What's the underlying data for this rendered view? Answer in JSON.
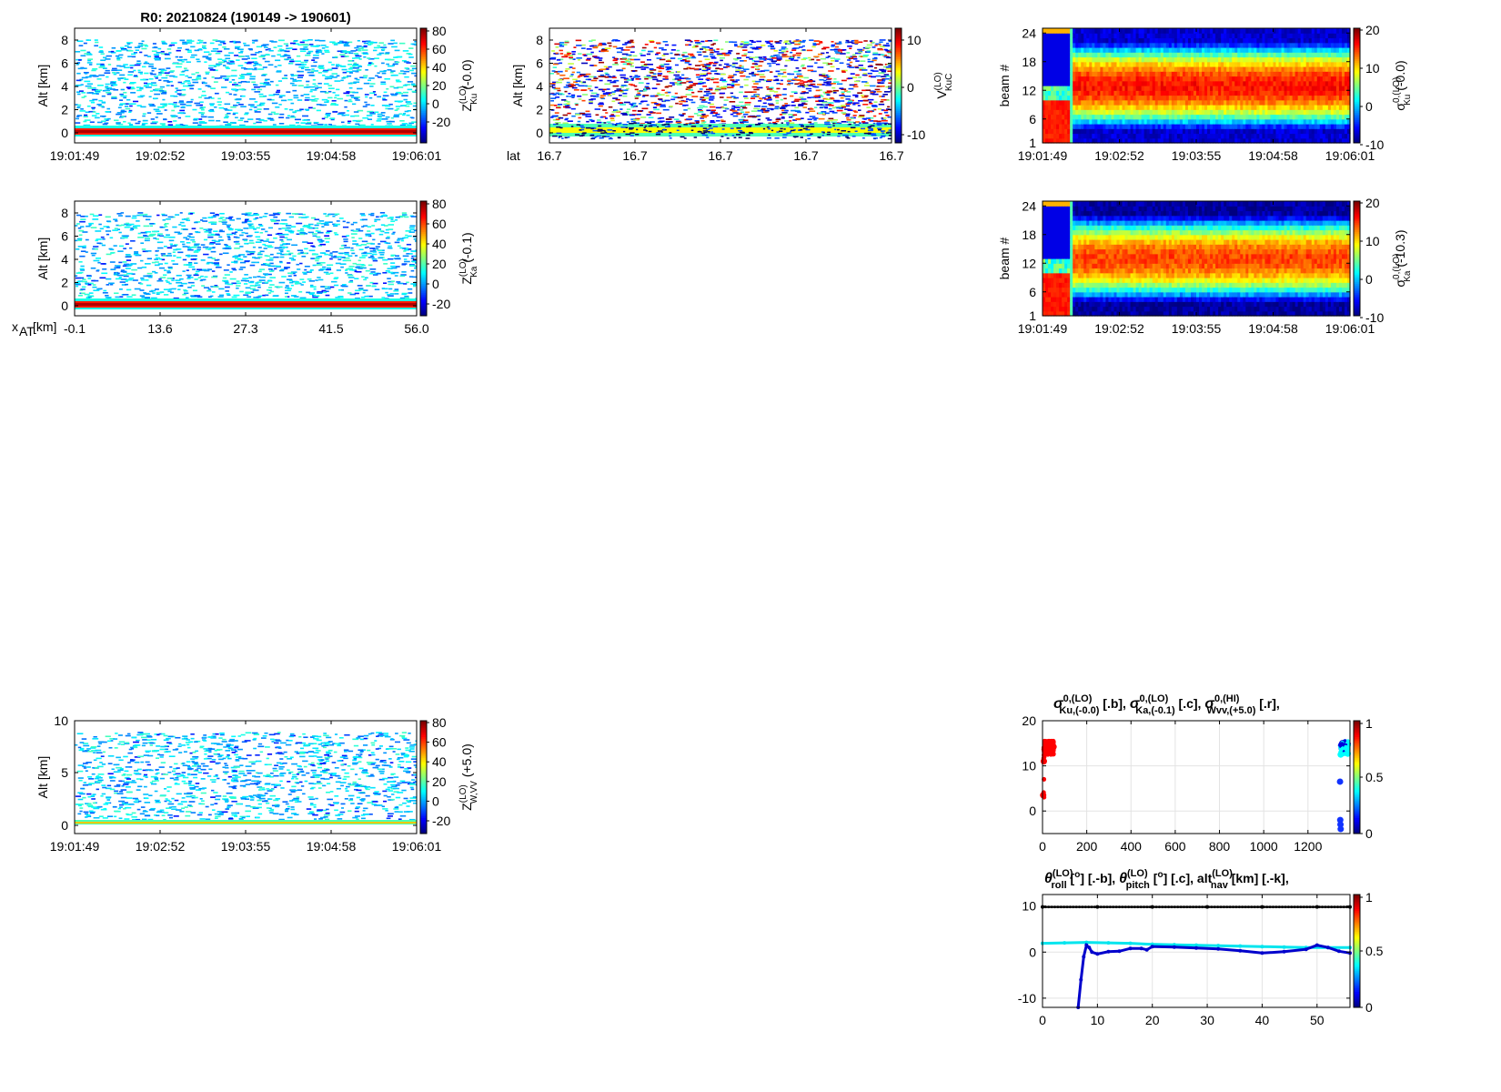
{
  "figure_title": "R0:  20210824 (190149 -> 190601)",
  "chart_data": [
    {
      "id": "zku",
      "type": "heatmap",
      "title": "R0:  20210824 (190149 -> 190601)",
      "ylabel": "Alt [km]",
      "xticks": [
        "19:01:49",
        "19:02:52",
        "19:03:55",
        "19:04:58",
        "19:06:01"
      ],
      "yticks": [
        "0",
        "2",
        "4",
        "6",
        "8"
      ],
      "ylim": [
        -0.8,
        9
      ],
      "colorbar": {
        "label": "Z_Ku^(LO) (-0.0)",
        "ticks": [
          "80",
          "60",
          "40",
          "20",
          "0",
          "-20"
        ],
        "range": [
          -30,
          80
        ],
        "palette": "jet"
      }
    },
    {
      "id": "vku",
      "type": "heatmap",
      "ylabel": "Alt [km]",
      "xlabel": "lat",
      "xticks": [
        "16.7",
        "16.7",
        "16.7",
        "16.7",
        "16.7"
      ],
      "yticks": [
        "0",
        "2",
        "4",
        "6",
        "8"
      ],
      "ylim": [
        -0.8,
        9
      ],
      "colorbar": {
        "label": "V_KuC^(LO)",
        "ticks": [
          "10",
          "0",
          "-10"
        ],
        "range": [
          -12,
          12
        ],
        "palette": "jet"
      }
    },
    {
      "id": "sigku",
      "type": "heatmap",
      "ylabel": "beam #",
      "xticks": [
        "19:01:49",
        "19:02:52",
        "19:03:55",
        "19:04:58",
        "19:06:01"
      ],
      "yticks": [
        "1",
        "6",
        "12",
        "18",
        "24"
      ],
      "ylim": [
        1,
        25
      ],
      "colorbar": {
        "label": "σ0_Ku^(LO) (-0.0)",
        "ticks": [
          "20",
          "10",
          "0",
          "-10"
        ],
        "range": [
          -10,
          20
        ],
        "palette": "jet"
      }
    },
    {
      "id": "zka",
      "type": "heatmap",
      "ylabel": "Alt [km]",
      "xlabel": "x_AT [km]",
      "xticks": [
        "-0.1",
        "13.6",
        "27.3",
        "41.5",
        "56.0"
      ],
      "yticks": [
        "0",
        "2",
        "4",
        "6",
        "8"
      ],
      "ylim": [
        -0.8,
        9
      ],
      "colorbar": {
        "label": "Z_Ka^(LO) (-0.1)",
        "ticks": [
          "80",
          "60",
          "40",
          "20",
          "0",
          "-20"
        ],
        "range": [
          -30,
          80
        ],
        "palette": "jet"
      }
    },
    {
      "id": "sigka",
      "type": "heatmap",
      "ylabel": "beam #",
      "xticks": [
        "19:01:49",
        "19:02:52",
        "19:03:55",
        "19:04:58",
        "19:06:01"
      ],
      "yticks": [
        "1",
        "6",
        "12",
        "18",
        "24"
      ],
      "ylim": [
        1,
        25
      ],
      "colorbar": {
        "label": "σ0_Ka^(LO) (-10.3)",
        "ticks": [
          "20",
          "10",
          "0",
          "-10"
        ],
        "range": [
          -10,
          20
        ],
        "palette": "jet"
      }
    },
    {
      "id": "zw",
      "type": "heatmap",
      "ylabel": "Alt [km]",
      "xticks": [
        "19:01:49",
        "19:02:52",
        "19:03:55",
        "19:04:58",
        "19:06:01"
      ],
      "yticks": [
        "0",
        "5",
        "10"
      ],
      "ylim": [
        -0.8,
        10.2
      ],
      "colorbar": {
        "label": "Z_W,VV^(LO) (+5.0)",
        "ticks": [
          "80",
          "60",
          "40",
          "20",
          "0",
          "-20"
        ],
        "range": [
          -30,
          80
        ],
        "palette": "jet"
      }
    },
    {
      "id": "sigline",
      "type": "scatter",
      "title": "σ0,(LO) Ku,(-0.0) [.b],  σ0,(LO) Ka,(-0.1) [.c],  σ0,(HI) Wvv,(+5.0) [.r],",
      "xticks": [
        "0",
        "200",
        "400",
        "600",
        "800",
        "1000",
        "1200"
      ],
      "xlim": [
        0,
        1390
      ],
      "yticks": [
        "0",
        "10",
        "20"
      ],
      "ylim": [
        -5,
        20
      ],
      "colorbar": {
        "ticks": [
          "1",
          "0.5",
          "0"
        ],
        "range": [
          0,
          1
        ]
      },
      "series": [
        {
          "name": "σ0 W,vv (red)",
          "color": "#ff0000",
          "x": [
            3,
            6,
            10,
            15,
            20,
            25,
            30,
            35,
            40,
            45,
            50
          ],
          "y": [
            3.5,
            11,
            14,
            14.5,
            14,
            13.5,
            15,
            14,
            14.5,
            13.8,
            14.2
          ]
        },
        {
          "name": "σ0 Ku (blue)",
          "color": "#0000dd",
          "x": [
            1350,
            1355,
            1360,
            1365,
            1370,
            1375,
            1380
          ],
          "y": [
            14.5,
            15,
            14.8,
            15,
            14.6,
            15,
            14.8
          ]
        },
        {
          "name": "σ0 Ka (cyan)",
          "color": "#00ffff",
          "x": [
            1348,
            1352,
            1358,
            1362,
            1368,
            1374,
            1380
          ],
          "y": [
            12.5,
            13,
            12.8,
            13.2,
            12.9,
            13,
            12.7
          ]
        },
        {
          "name": "outliers",
          "color": "#1133ff",
          "x": [
            1345,
            1346,
            1347,
            1348
          ],
          "y": [
            6.5,
            -2,
            -3,
            -4
          ]
        }
      ]
    },
    {
      "id": "attline",
      "type": "line",
      "title": "θ(LO) roll [o] [.-b],  θ(LO) pitch [o] [.c],  alt(LO) nav [km] [.-k],",
      "xticks": [
        "0",
        "10",
        "20",
        "30",
        "40",
        "50"
      ],
      "xlim": [
        0,
        56
      ],
      "yticks": [
        "-10",
        "0",
        "10"
      ],
      "ylim": [
        -12,
        12.5
      ],
      "colorbar": {
        "ticks": [
          "1",
          "0.5",
          "0"
        ],
        "range": [
          0,
          1
        ]
      },
      "series": [
        {
          "name": "alt nav",
          "color": "#000000",
          "x": [
            0,
            10,
            20,
            30,
            40,
            50,
            56
          ],
          "y": [
            9.8,
            9.8,
            9.8,
            9.8,
            9.8,
            9.8,
            9.8
          ]
        },
        {
          "name": "pitch",
          "color": "#00e5ee",
          "x": [
            0,
            4,
            8,
            12,
            16,
            20,
            24,
            28,
            32,
            36,
            40,
            44,
            48,
            52,
            56
          ],
          "y": [
            1.9,
            2.0,
            2.1,
            2.0,
            1.9,
            1.7,
            1.6,
            1.5,
            1.4,
            1.3,
            1.2,
            1.1,
            1.0,
            1.0,
            1.0
          ]
        },
        {
          "name": "roll",
          "color": "#0000cc",
          "x": [
            6.5,
            7,
            7.5,
            8,
            8.5,
            9,
            10,
            12,
            14,
            16,
            18,
            19,
            20,
            24,
            28,
            32,
            36,
            40,
            44,
            48,
            50,
            52,
            54,
            56
          ],
          "y": [
            -12,
            -6,
            -1,
            1.5,
            1,
            0,
            -0.4,
            0.1,
            0.2,
            0.8,
            0.8,
            0.5,
            1.2,
            1.1,
            0.9,
            0.7,
            0.3,
            -0.2,
            0.1,
            0.6,
            1.5,
            1.0,
            0.2,
            -0.2
          ]
        }
      ]
    }
  ]
}
